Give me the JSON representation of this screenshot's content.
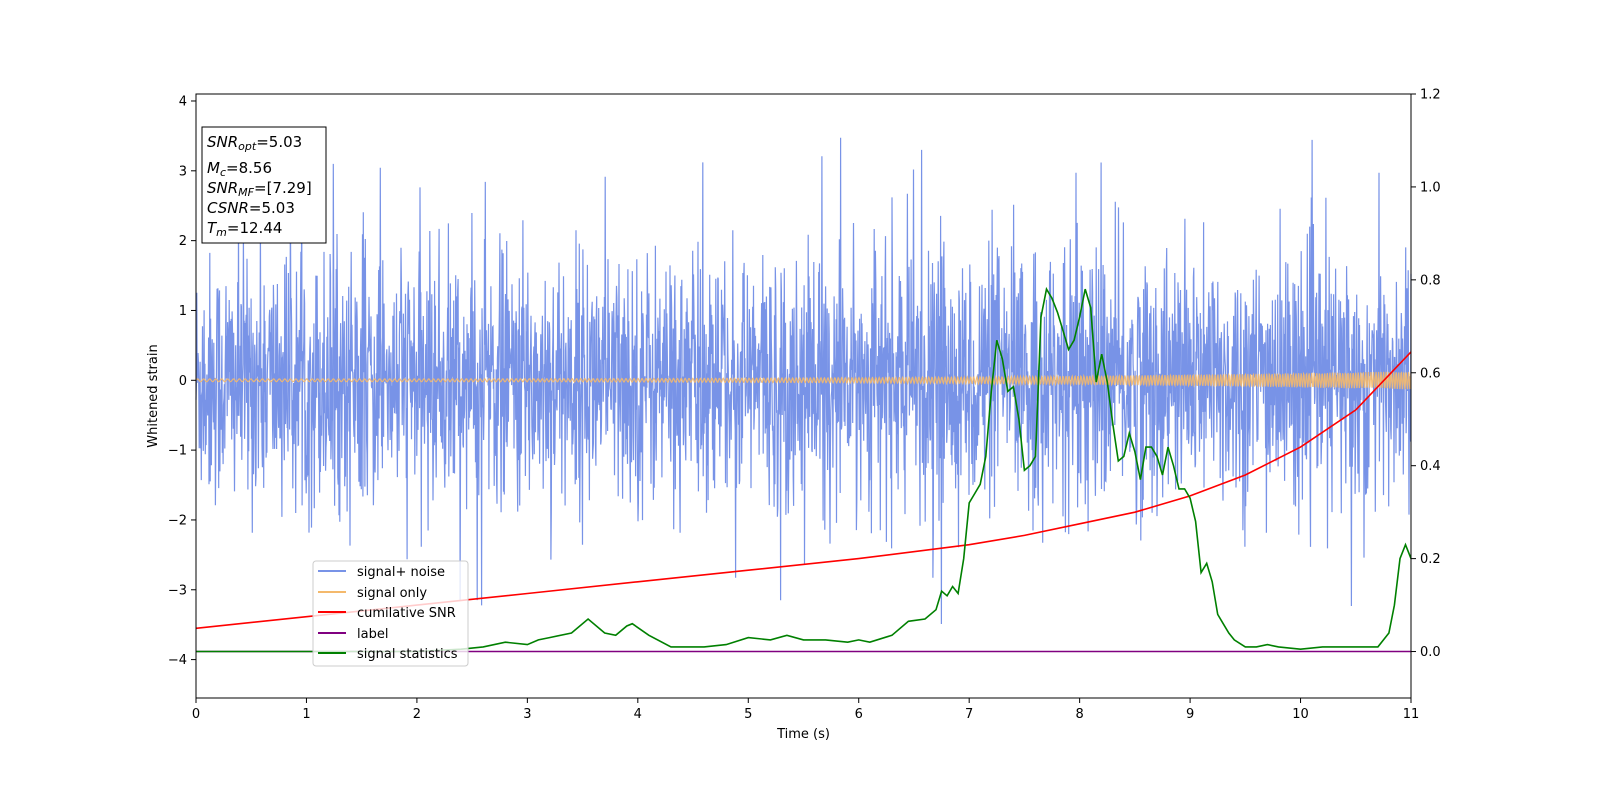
{
  "chart_data": {
    "type": "line",
    "xlabel": "Time (s)",
    "ylabel": "Whitened strain",
    "xlim": [
      0,
      11
    ],
    "ylim_left": [
      -4.55,
      4.1
    ],
    "ylim_right": [
      -0.1,
      1.2
    ],
    "x_ticks": [
      0,
      1,
      2,
      3,
      4,
      5,
      6,
      7,
      8,
      9,
      10,
      11
    ],
    "y_left_ticks": [
      -4,
      -3,
      -2,
      -1,
      0,
      1,
      2,
      3,
      4
    ],
    "y_right_ticks": [
      0.0,
      0.2,
      0.4,
      0.6,
      0.8,
      1.0,
      1.2
    ],
    "grid": false,
    "legend_position": "lower-left",
    "info_box": {
      "snr_opt": {
        "base": "SNR",
        "sub": "opt",
        "value": "=5.03"
      },
      "mc": {
        "base": "M",
        "sub": "c",
        "value": "=8.56"
      },
      "snr_mf": {
        "base": "SNR",
        "sub": "MF",
        "value": "=[7.29]"
      },
      "csnr": {
        "base": "CSNR",
        "sub": "",
        "value": "=5.03"
      },
      "tm": {
        "base": "T",
        "sub": "m",
        "value": "=12.44"
      }
    },
    "series": [
      {
        "name": "signal+ noise",
        "axis": "left",
        "color": "#7893e7",
        "description_range": [
          -4.15,
          3.7
        ],
        "noise_std": 0.9,
        "sample_points": 3000
      },
      {
        "name": "signal only",
        "axis": "left",
        "color": "#f4b96c",
        "amplitude_start": 0.02,
        "amplitude_end": 0.13
      },
      {
        "name": "cumilative SNR",
        "axis": "right",
        "color": "#ff0000",
        "x": [
          0,
          1,
          2,
          3,
          4,
          5,
          6,
          7,
          7.5,
          8,
          8.5,
          9,
          9.5,
          10,
          10.5,
          11
        ],
        "y": [
          0.05,
          0.075,
          0.1,
          0.125,
          0.15,
          0.175,
          0.2,
          0.23,
          0.25,
          0.275,
          0.3,
          0.335,
          0.38,
          0.44,
          0.52,
          0.645
        ]
      },
      {
        "name": "label",
        "axis": "right",
        "color": "#800080",
        "x": [
          0,
          11
        ],
        "y": [
          0.0,
          0.0
        ]
      },
      {
        "name": "signal statistics",
        "axis": "right",
        "color": "#008000",
        "x": [
          0,
          1,
          2,
          2.4,
          2.6,
          2.8,
          3.0,
          3.1,
          3.2,
          3.4,
          3.55,
          3.7,
          3.8,
          3.9,
          3.95,
          4.1,
          4.3,
          4.6,
          4.8,
          5.0,
          5.2,
          5.35,
          5.5,
          5.7,
          5.9,
          6.0,
          6.1,
          6.3,
          6.45,
          6.6,
          6.7,
          6.75,
          6.8,
          6.85,
          6.9,
          6.95,
          7.0,
          7.05,
          7.1,
          7.15,
          7.2,
          7.25,
          7.3,
          7.35,
          7.4,
          7.45,
          7.5,
          7.55,
          7.6,
          7.65,
          7.7,
          7.75,
          7.8,
          7.85,
          7.9,
          7.95,
          8.0,
          8.05,
          8.1,
          8.15,
          8.2,
          8.25,
          8.3,
          8.35,
          8.4,
          8.45,
          8.5,
          8.55,
          8.6,
          8.65,
          8.7,
          8.75,
          8.8,
          8.85,
          8.9,
          8.95,
          9.0,
          9.05,
          9.1,
          9.15,
          9.2,
          9.25,
          9.3,
          9.35,
          9.4,
          9.5,
          9.6,
          9.7,
          9.8,
          10.0,
          10.2,
          10.4,
          10.6,
          10.7,
          10.8,
          10.85,
          10.9,
          10.95,
          11.0
        ],
        "y": [
          0.0,
          0.0,
          0.0,
          0.005,
          0.01,
          0.02,
          0.015,
          0.025,
          0.03,
          0.04,
          0.07,
          0.04,
          0.035,
          0.055,
          0.06,
          0.035,
          0.01,
          0.01,
          0.015,
          0.03,
          0.025,
          0.035,
          0.025,
          0.025,
          0.02,
          0.025,
          0.02,
          0.035,
          0.065,
          0.07,
          0.09,
          0.13,
          0.12,
          0.14,
          0.125,
          0.2,
          0.32,
          0.34,
          0.36,
          0.42,
          0.56,
          0.67,
          0.63,
          0.56,
          0.57,
          0.5,
          0.39,
          0.4,
          0.42,
          0.72,
          0.78,
          0.76,
          0.73,
          0.69,
          0.65,
          0.67,
          0.72,
          0.78,
          0.74,
          0.58,
          0.64,
          0.58,
          0.49,
          0.41,
          0.42,
          0.47,
          0.43,
          0.37,
          0.44,
          0.44,
          0.42,
          0.38,
          0.44,
          0.4,
          0.35,
          0.35,
          0.33,
          0.28,
          0.17,
          0.19,
          0.15,
          0.08,
          0.06,
          0.04,
          0.025,
          0.01,
          0.01,
          0.015,
          0.01,
          0.005,
          0.01,
          0.01,
          0.01,
          0.01,
          0.04,
          0.1,
          0.2,
          0.23,
          0.2
        ]
      }
    ]
  }
}
